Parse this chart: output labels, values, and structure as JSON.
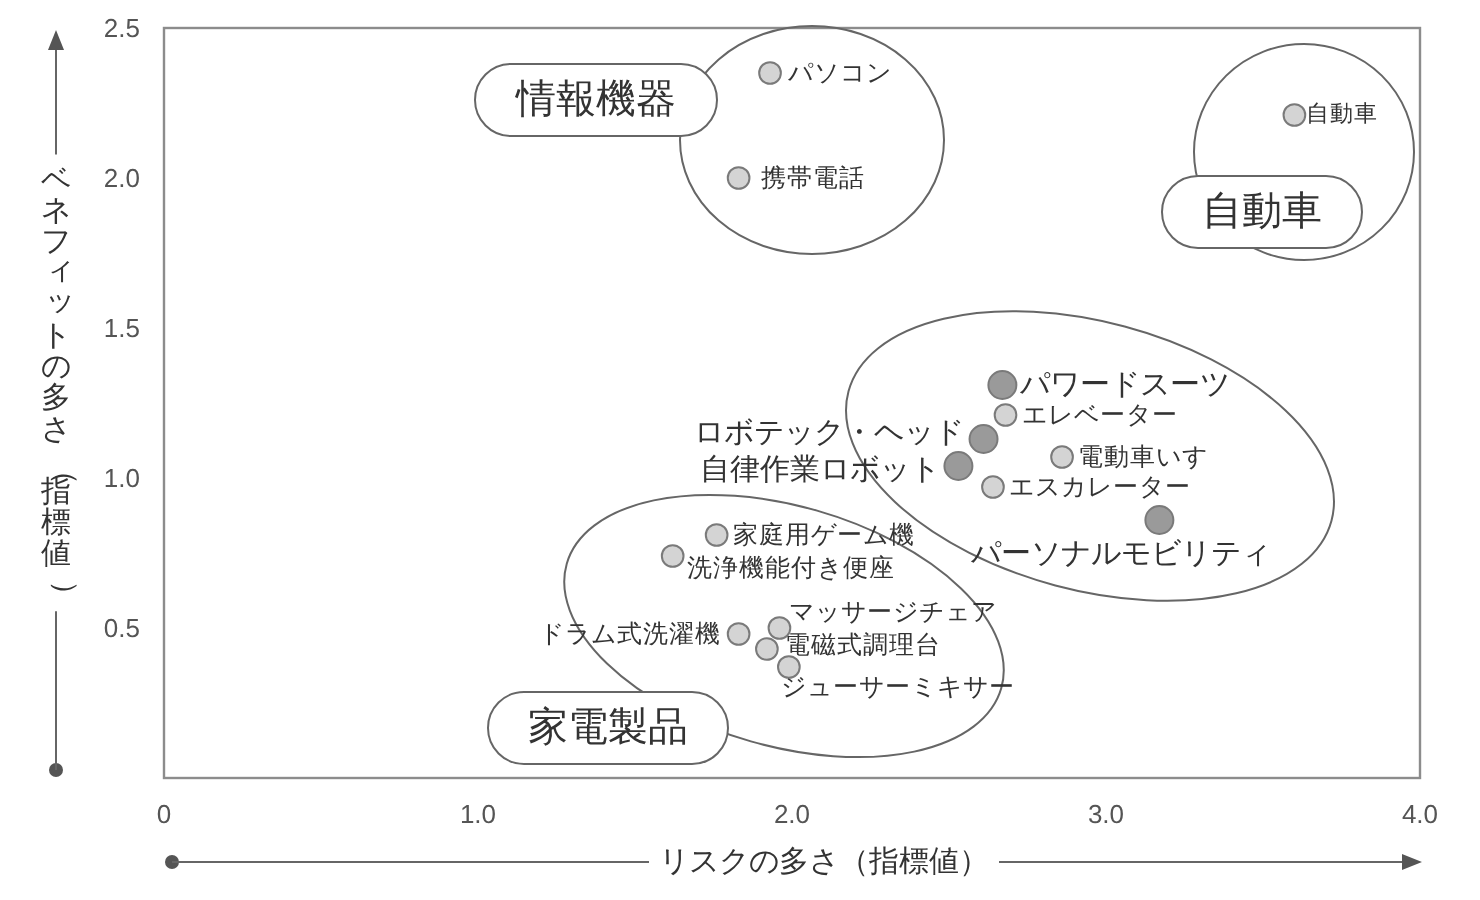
{
  "chart_data": {
    "type": "bubble",
    "xlabel": "リスクの多さ（指標値）",
    "ylabel": "ベネフィットの多さ（指標値）",
    "xlim": [
      0,
      4
    ],
    "xticks": [
      0,
      {
        "value": 1,
        "label": "1.0"
      },
      {
        "value": 2,
        "label": "2.0"
      },
      {
        "value": 3,
        "label": "3.0"
      },
      {
        "value": 4,
        "label": "4.0"
      }
    ],
    "ylim": [
      0,
      2.5
    ],
    "yticks": [
      0.5,
      {
        "value": 1,
        "label": "1.0"
      },
      1.5,
      {
        "value": 2,
        "label": "2.0"
      },
      2.5
    ],
    "marker": "circle",
    "series": [
      {
        "name": "情報機器",
        "x": [
          1.93,
          1.83
        ],
        "values": [
          2.35,
          2.0
        ],
        "sizes": [
          0.6,
          0.6
        ],
        "colors": [
          "#d4d4d4",
          "#d4d4d4"
        ]
      },
      {
        "name": "自動車",
        "x": [
          3.6
        ],
        "values": [
          2.21
        ],
        "sizes": [
          0.6
        ],
        "colors": [
          "#d4d4d4"
        ]
      },
      {
        "x": [
          2.67,
          2.68,
          2.61,
          2.53,
          2.86,
          2.64,
          3.17
        ],
        "values": [
          1.31,
          1.21,
          1.13,
          1.04,
          1.07,
          0.97,
          0.86
        ],
        "sizes": [
          1,
          0.6,
          1,
          1,
          0.6,
          0.6,
          1
        ],
        "colors": [
          "#9a9a9a",
          "#d4d4d4",
          "#9a9a9a",
          "#9a9a9a",
          "#d4d4d4",
          "#d4d4d4",
          "#9a9a9a"
        ]
      },
      {
        "name": "家電製品",
        "x": [
          1.76,
          1.62,
          1.83,
          1.96,
          1.92,
          1.99
        ],
        "values": [
          0.81,
          0.74,
          0.48,
          0.5,
          0.43,
          0.37
        ],
        "sizes": [
          0.6,
          0.6,
          0.6,
          0.6,
          0.6,
          0.6
        ],
        "colors": [
          "#d4d4d4",
          "#d4d4d4",
          "#d4d4d4",
          "#d4d4d4",
          "#d4d4d4",
          "#d4d4d4"
        ]
      }
    ],
    "annotations": [
      {
        "text": "パソコン",
        "x": 1.93,
        "y": 2.35
      },
      {
        "text": "携帯電話",
        "x": 1.83,
        "y": 2.0
      },
      {
        "text": "自動車",
        "x": 3.6,
        "y": 2.21
      },
      {
        "text": "パワードスーツ",
        "x": 2.67,
        "y": 1.31
      },
      {
        "text": "エレベーター",
        "x": 2.68,
        "y": 1.21
      },
      {
        "text": "ロボテック・ヘッド",
        "x": 2.61,
        "y": 1.13
      },
      {
        "text": "自律作業ロボット",
        "x": 2.53,
        "y": 1.04
      },
      {
        "text": "電動車いす",
        "x": 2.86,
        "y": 1.07
      },
      {
        "text": "エスカレーター",
        "x": 2.64,
        "y": 0.97
      },
      {
        "text": "パーソナルモビリティ",
        "x": 3.17,
        "y": 0.86
      },
      {
        "text": "家庭用ゲーム機",
        "x": 1.76,
        "y": 0.81
      },
      {
        "text": "洗浄機能付き便座",
        "x": 1.62,
        "y": 0.74
      },
      {
        "text": "ドラム式洗濯機",
        "x": 1.83,
        "y": 0.48
      },
      {
        "text": "マッサージチェア",
        "x": 1.96,
        "y": 0.5
      },
      {
        "text": "電磁式調理台",
        "x": 1.92,
        "y": 0.43
      },
      {
        "text": "ジューサーミキサー",
        "x": 1.99,
        "y": 0.37
      }
    ]
  }
}
